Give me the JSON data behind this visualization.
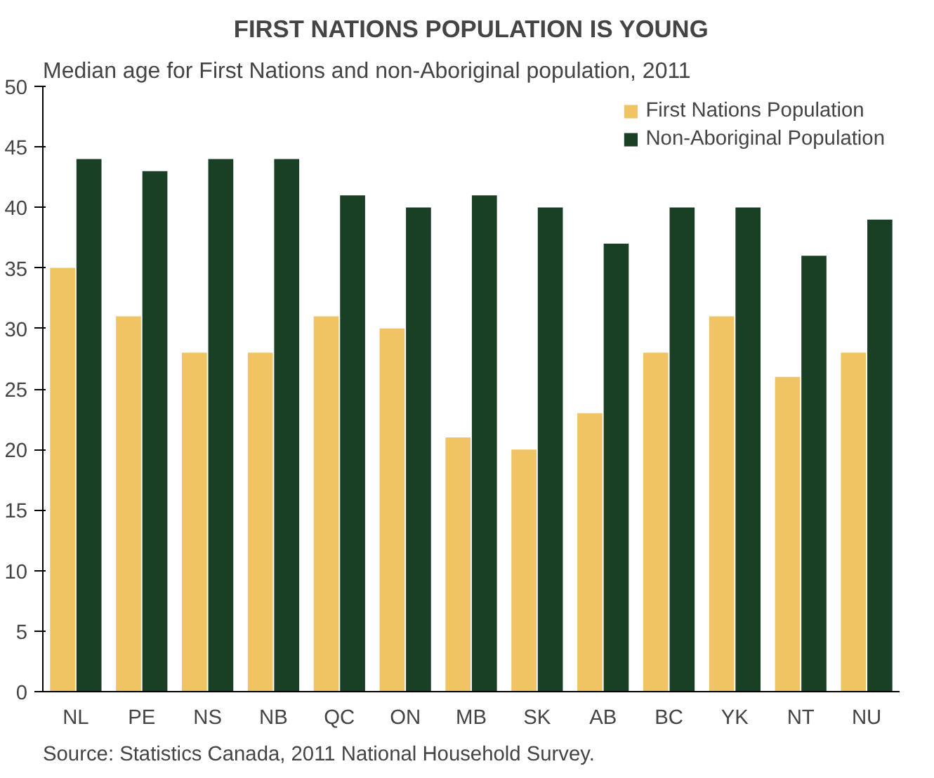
{
  "chart_data": {
    "type": "bar",
    "title": "FIRST NATIONS POPULATION IS YOUNG",
    "subtitle": "Median age for First Nations and non-Aboriginal population, 2011",
    "categories": [
      "NL",
      "PE",
      "NS",
      "NB",
      "QC",
      "ON",
      "MB",
      "SK",
      "AB",
      "BC",
      "YK",
      "NT",
      "NU"
    ],
    "series": [
      {
        "name": "First Nations Population",
        "color": "#f0c462",
        "values": [
          35,
          31,
          28,
          28,
          31,
          30,
          21,
          20,
          23,
          28,
          31,
          26,
          28
        ]
      },
      {
        "name": "Non-Aboriginal Population",
        "color": "#193f24",
        "values": [
          44,
          43,
          44,
          44,
          41,
          40,
          41,
          40,
          37,
          40,
          40,
          36,
          39
        ]
      }
    ],
    "ylim": [
      0,
      50
    ],
    "yticks": [
      0,
      5,
      10,
      15,
      20,
      25,
      30,
      35,
      40,
      45,
      50
    ],
    "grid": false,
    "legend": "top right",
    "annotations": [
      "Source: Statistics Canada, 2011 National Household Survey."
    ]
  }
}
